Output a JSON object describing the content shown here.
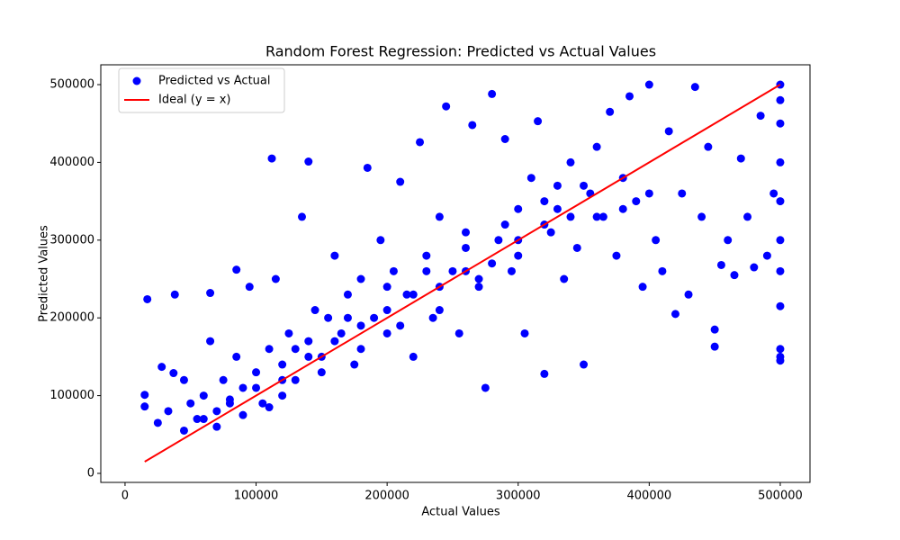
{
  "chart_data": {
    "type": "scatter",
    "title": "Random Forest Regression: Predicted vs Actual Values",
    "x_label": "Actual Values",
    "y_label": "Predicted Values",
    "xlim": [
      -18500,
      522700
    ],
    "ylim": [
      -11600,
      525500
    ],
    "xticks": [
      0,
      100000,
      200000,
      300000,
      400000,
      500000
    ],
    "yticks": [
      0,
      100000,
      200000,
      300000,
      400000,
      500000
    ],
    "grid": false,
    "legend": "upper left",
    "series": [
      {
        "name": "Predicted vs Actual",
        "color": "#0000ff",
        "type": "scatter",
        "x": [
          17000,
          15000,
          15000,
          25000,
          28000,
          33000,
          37000,
          38000,
          45000,
          45000,
          50000,
          55000,
          60000,
          65000,
          65000,
          70000,
          75000,
          80000,
          85000,
          85000,
          90000,
          95000,
          100000,
          105000,
          110000,
          112000,
          115000,
          120000,
          125000,
          130000,
          135000,
          140000,
          140000,
          145000,
          150000,
          155000,
          160000,
          165000,
          170000,
          175000,
          180000,
          185000,
          190000,
          195000,
          200000,
          205000,
          210000,
          215000,
          220000,
          225000,
          230000,
          235000,
          240000,
          245000,
          250000,
          255000,
          260000,
          265000,
          270000,
          275000,
          280000,
          285000,
          290000,
          295000,
          300000,
          305000,
          310000,
          315000,
          320000,
          325000,
          330000,
          335000,
          340000,
          345000,
          350000,
          355000,
          360000,
          365000,
          370000,
          375000,
          380000,
          385000,
          390000,
          395000,
          400000,
          405000,
          410000,
          415000,
          420000,
          425000,
          430000,
          435000,
          440000,
          445000,
          450000,
          450000,
          455000,
          460000,
          465000,
          470000,
          475000,
          480000,
          485000,
          490000,
          495000,
          500000,
          500000,
          500000,
          500000,
          500000,
          500000,
          500000,
          500000,
          500000,
          500000,
          500000,
          60000,
          80000,
          100000,
          120000,
          140000,
          160000,
          180000,
          200000,
          220000,
          240000,
          260000,
          280000,
          300000,
          320000,
          340000,
          120000,
          150000,
          180000,
          210000,
          240000,
          270000,
          300000,
          330000,
          350000,
          90000,
          70000,
          110000,
          130000,
          170000,
          200000,
          230000,
          260000,
          290000,
          320000,
          360000,
          380000,
          400000
        ],
        "values": [
          224000,
          101000,
          86000,
          65000,
          137000,
          80000,
          129000,
          230000,
          120000,
          55000,
          90000,
          70000,
          100000,
          232000,
          170000,
          80000,
          120000,
          95000,
          262000,
          150000,
          110000,
          240000,
          130000,
          90000,
          160000,
          405000,
          250000,
          140000,
          180000,
          120000,
          330000,
          401000,
          170000,
          210000,
          150000,
          200000,
          280000,
          180000,
          230000,
          140000,
          250000,
          393000,
          200000,
          300000,
          180000,
          260000,
          375000,
          230000,
          150000,
          426000,
          280000,
          200000,
          330000,
          472000,
          260000,
          180000,
          310000,
          448000,
          240000,
          110000,
          488000,
          300000,
          430000,
          260000,
          340000,
          180000,
          380000,
          453000,
          128000,
          310000,
          370000,
          250000,
          400000,
          290000,
          140000,
          360000,
          420000,
          330000,
          465000,
          280000,
          380000,
          485000,
          350000,
          240000,
          500000,
          300000,
          260000,
          440000,
          205000,
          360000,
          230000,
          497000,
          330000,
          420000,
          163000,
          185000,
          268000,
          300000,
          255000,
          405000,
          330000,
          265000,
          460000,
          280000,
          360000,
          500000,
          480000,
          450000,
          400000,
          350000,
          300000,
          260000,
          215000,
          160000,
          145000,
          150000,
          70000,
          90000,
          110000,
          120000,
          150000,
          170000,
          190000,
          210000,
          230000,
          240000,
          260000,
          270000,
          300000,
          320000,
          330000,
          100000,
          130000,
          160000,
          190000,
          210000,
          250000,
          280000,
          340000,
          370000,
          75000,
          60000,
          85000,
          160000,
          200000,
          240000,
          260000,
          290000,
          320000,
          350000,
          330000,
          340000,
          360000
        ]
      },
      {
        "name": "Ideal (y = x)",
        "color": "#ff0000",
        "type": "line",
        "x": [
          15000,
          500000
        ],
        "values": [
          15000,
          500000
        ]
      }
    ]
  }
}
